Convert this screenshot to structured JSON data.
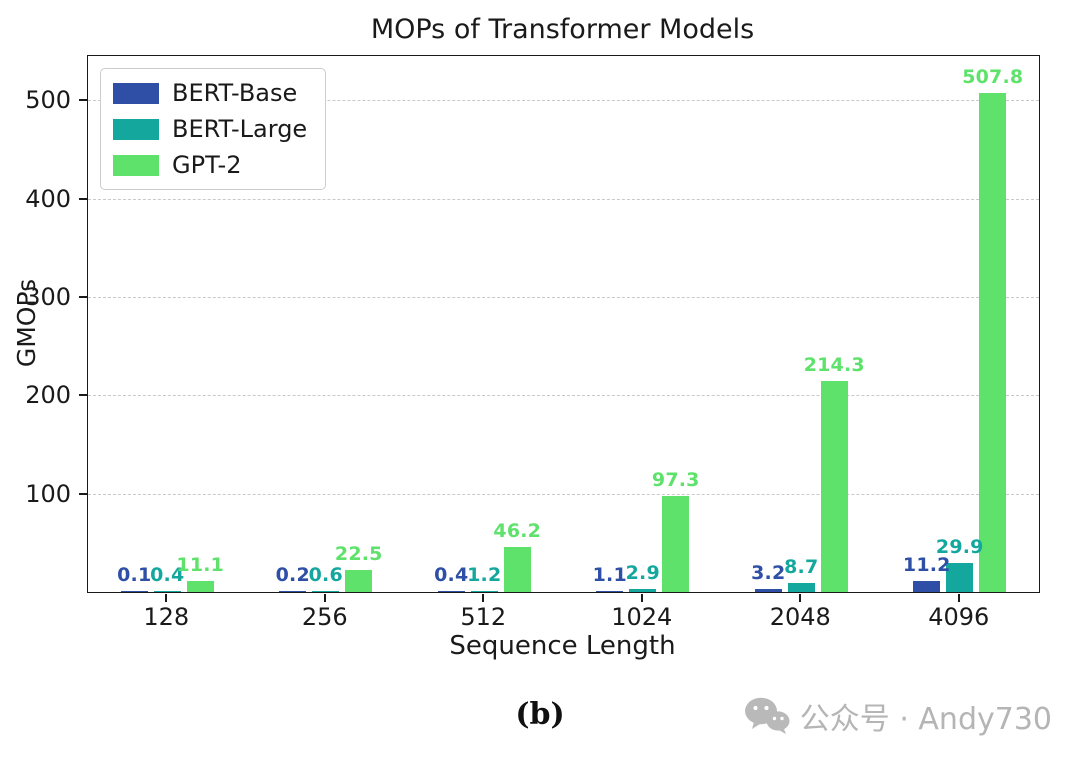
{
  "chart_data": {
    "type": "bar",
    "title": "MOPs of Transformer Models",
    "xlabel": "Sequence Length",
    "ylabel": "GMOPs",
    "categories": [
      "128",
      "256",
      "512",
      "1024",
      "2048",
      "4096"
    ],
    "series": [
      {
        "name": "BERT-Base",
        "color": "#2e4fa5",
        "values": [
          0.1,
          0.2,
          0.4,
          1.1,
          3.2,
          11.2
        ]
      },
      {
        "name": "BERT-Large",
        "color": "#14a79d",
        "values": [
          0.4,
          0.6,
          1.2,
          2.9,
          8.7,
          29.9
        ]
      },
      {
        "name": "GPT-2",
        "color": "#5ee26b",
        "values": [
          11.1,
          22.5,
          46.2,
          97.3,
          214.3,
          507.8
        ]
      }
    ],
    "ylim": [
      0,
      545
    ],
    "yticks": [
      100,
      200,
      300,
      400,
      500
    ],
    "grid": "dashed-horizontal",
    "legend_position": "upper-left",
    "bar_labels": true
  },
  "figure_label": "(b)",
  "watermark": {
    "text": "公众号 · Andy730",
    "icon": "wechat-icon",
    "color": "#b5b5b5"
  }
}
